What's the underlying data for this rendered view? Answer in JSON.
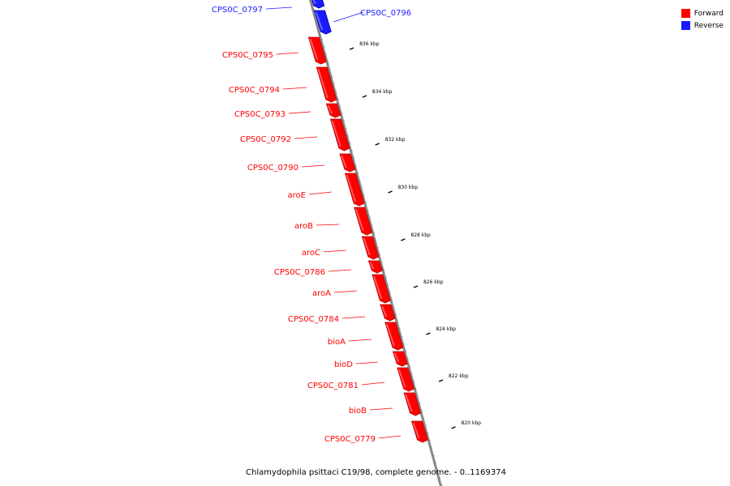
{
  "legend": {
    "forward_label": "Forward",
    "reverse_label": "Reverse",
    "forward_color": "#ff0000",
    "reverse_color": "#1a1aff"
  },
  "caption": "Chlamydophila psittaci C19/98, complete genome. - 0..1169374",
  "scale_labels": [
    "836 kbp",
    "834 kbp",
    "832 kbp",
    "830 kbp",
    "828 kbp",
    "826 kbp",
    "824 kbp",
    "822 kbp",
    "820 kbp"
  ],
  "genes": [
    {
      "name": "CPS0C_0797",
      "strand": "reverse"
    },
    {
      "name": "CPS0C_0796",
      "strand": "reverse"
    },
    {
      "name": "CPS0C_0795",
      "strand": "forward"
    },
    {
      "name": "CPS0C_0794",
      "strand": "forward"
    },
    {
      "name": "CPS0C_0793",
      "strand": "forward"
    },
    {
      "name": "CPS0C_0792",
      "strand": "forward"
    },
    {
      "name": "CPS0C_0790",
      "strand": "forward"
    },
    {
      "name": "aroE",
      "strand": "forward"
    },
    {
      "name": "aroB",
      "strand": "forward"
    },
    {
      "name": "aroC",
      "strand": "forward"
    },
    {
      "name": "CPS0C_0786",
      "strand": "forward"
    },
    {
      "name": "aroA",
      "strand": "forward"
    },
    {
      "name": "CPS0C_0784",
      "strand": "forward"
    },
    {
      "name": "bioA",
      "strand": "forward"
    },
    {
      "name": "bioD",
      "strand": "forward"
    },
    {
      "name": "CPS0C_0781",
      "strand": "forward"
    },
    {
      "name": "bioB",
      "strand": "forward"
    },
    {
      "name": "CPS0C_0779",
      "strand": "forward"
    }
  ]
}
